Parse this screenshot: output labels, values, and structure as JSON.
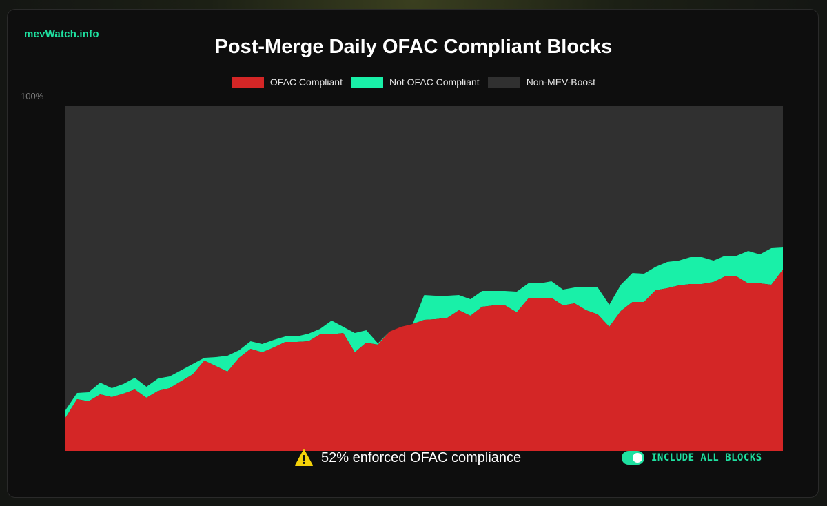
{
  "brand": "mevWatch.info",
  "footer": {
    "compliance_text": "52% enforced OFAC compliance",
    "toggle_label": "INCLUDE ALL BLOCKS",
    "toggle_on": true
  },
  "colors": {
    "ofac_compliant": "#d42626",
    "not_ofac_compliant": "#19f0a8",
    "non_mev_boost": "#303030",
    "accent": "#1ee0a0"
  },
  "chart_data": {
    "type": "area",
    "title": "Post-Merge Daily OFAC Compliant Blocks",
    "stacked": true,
    "ylim": [
      0,
      100
    ],
    "yticks": [
      "100%"
    ],
    "legend_placement": "top",
    "series": [
      {
        "name": "OFAC Compliant",
        "color": "#d42626",
        "values": [
          9.6,
          15.0,
          14.4,
          16.4,
          15.6,
          16.6,
          17.8,
          15.4,
          17.4,
          18.2,
          20.2,
          22.2,
          26.2,
          24.6,
          23.0,
          27.0,
          29.6,
          28.6,
          30.0,
          31.6,
          31.6,
          31.8,
          33.8,
          33.8,
          34.2,
          28.6,
          31.4,
          30.8,
          34.6,
          36.0,
          36.8,
          38.0,
          38.2,
          38.6,
          40.8,
          39.2,
          41.8,
          42.2,
          42.2,
          40.2,
          44.2,
          44.4,
          44.4,
          42.2,
          42.8,
          40.8,
          39.6,
          36.0,
          40.6,
          43.2,
          43.2,
          46.6,
          47.2,
          48.0,
          48.4,
          48.4,
          49.0,
          50.6,
          50.6,
          48.6,
          48.6,
          48.2,
          52.6
        ]
      },
      {
        "name": "Not OFAC Compliant",
        "color": "#19f0a8",
        "values": [
          2.2,
          1.8,
          2.6,
          3.4,
          2.6,
          2.8,
          3.4,
          3.2,
          3.6,
          3.4,
          3.2,
          3.0,
          0.8,
          2.6,
          4.6,
          2.2,
          2.2,
          2.4,
          2.2,
          1.6,
          1.6,
          2.2,
          1.6,
          4.0,
          1.8,
          5.6,
          3.6,
          0.4,
          0.0,
          0.0,
          0.0,
          7.2,
          6.8,
          6.4,
          4.4,
          4.8,
          4.6,
          4.2,
          4.2,
          6.0,
          4.4,
          4.2,
          4.8,
          4.6,
          4.6,
          6.8,
          7.8,
          6.4,
          7.6,
          8.4,
          8.2,
          6.8,
          7.6,
          7.2,
          7.8,
          7.8,
          6.2,
          6.0,
          6.0,
          9.4,
          8.4,
          10.6,
          6.4
        ]
      },
      {
        "name": "Non-MEV-Boost",
        "color": "#303030",
        "values": [
          88.2,
          83.2,
          83.0,
          80.2,
          81.8,
          80.6,
          78.8,
          81.4,
          79.0,
          78.4,
          76.6,
          74.8,
          73.0,
          72.8,
          72.4,
          70.8,
          68.2,
          69.0,
          67.8,
          66.8,
          66.8,
          66.0,
          64.6,
          62.2,
          64.0,
          65.8,
          65.0,
          68.8,
          65.4,
          64.0,
          63.2,
          54.8,
          55.0,
          55.0,
          54.8,
          56.0,
          53.6,
          53.6,
          53.6,
          53.8,
          51.4,
          51.4,
          50.8,
          53.2,
          52.6,
          52.4,
          52.6,
          57.6,
          51.8,
          48.4,
          48.6,
          46.6,
          45.2,
          44.8,
          43.8,
          43.8,
          44.8,
          43.4,
          43.4,
          42.0,
          43.0,
          41.2,
          41.0
        ]
      }
    ]
  }
}
